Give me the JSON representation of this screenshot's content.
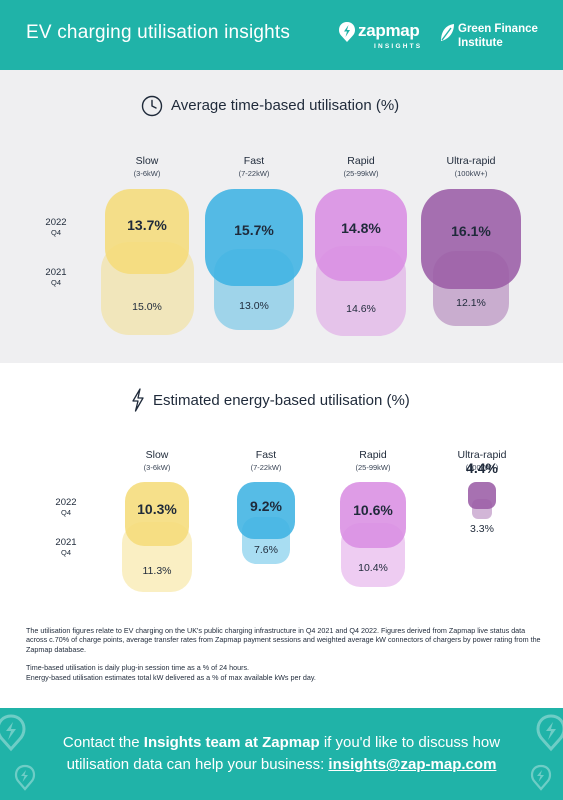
{
  "header": {
    "title": "EV charging utilisation insights",
    "zapmap_name": "zapmap",
    "zapmap_sub": "INSIGHTS",
    "gfi_line1": "Green Finance",
    "gfi_line2": "Institute"
  },
  "colors": {
    "teal": "#20b3a8",
    "slow": "#f5dc7a",
    "fast": "#3fb3e3",
    "rapid": "#d98ee2",
    "ultra": "#9b5da6"
  },
  "chart_data": [
    {
      "type": "bar",
      "title": "Average time-based utilisation (%)",
      "icon": "clock-icon",
      "categories": [
        "Slow",
        "Fast",
        "Rapid",
        "Ultra-rapid"
      ],
      "category_subs": [
        "(3-6kW)",
        "(7-22kW)",
        "(25-99kW)",
        "(100kW+)"
      ],
      "series": [
        {
          "name": "2022 Q4",
          "year": "2022",
          "quarter": "Q4",
          "values": [
            13.7,
            15.7,
            14.8,
            16.1
          ],
          "labels": [
            "13.7%",
            "15.7%",
            "14.8%",
            "16.1%"
          ]
        },
        {
          "name": "2021 Q4",
          "year": "2021",
          "quarter": "Q4",
          "values": [
            15.0,
            13.0,
            14.6,
            12.1
          ],
          "labels": [
            "15.0%",
            "13.0%",
            "14.6%",
            "12.1%"
          ]
        }
      ]
    },
    {
      "type": "bar",
      "title": "Estimated energy-based utilisation (%)",
      "icon": "lightning-icon",
      "categories": [
        "Slow",
        "Fast",
        "Rapid",
        "Ultra-rapid"
      ],
      "category_subs": [
        "(3-6kW)",
        "(7-22kW)",
        "(25-99kW)",
        "(100kW+)"
      ],
      "series": [
        {
          "name": "2022 Q4",
          "year": "2022",
          "quarter": "Q4",
          "values": [
            10.3,
            9.2,
            10.6,
            4.4
          ],
          "labels": [
            "10.3%",
            "9.2%",
            "10.6%",
            "4.4%"
          ]
        },
        {
          "name": "2021 Q4",
          "year": "2021",
          "quarter": "Q4",
          "values": [
            11.3,
            7.6,
            10.4,
            3.3
          ],
          "labels": [
            "11.3%",
            "7.6%",
            "10.4%",
            "3.3%"
          ]
        }
      ]
    }
  ],
  "notes": {
    "paragraph1": "The utilisation figures relate to EV charging on the UK's public charging infrastructure in Q4 2021 and Q4 2022. Figures derived from Zapmap live status data across c.70% of charge points, average transfer rates from Zapmap payment sessions and weighted average kW connectors of chargers by power rating from the Zapmap database.",
    "paragraph2": "Time-based utilisation is daily plug-in session time as a % of 24 hours.",
    "paragraph3": "Energy-based utilisation estimates total kW delivered as a % of max available kWs per day."
  },
  "footer": {
    "pre": "Contact the ",
    "bold": "Insights team at Zapmap",
    "post": " if you'd like to discuss how",
    "line2": "utilisation data can help your business: ",
    "email": "insights@zap-map.com"
  }
}
